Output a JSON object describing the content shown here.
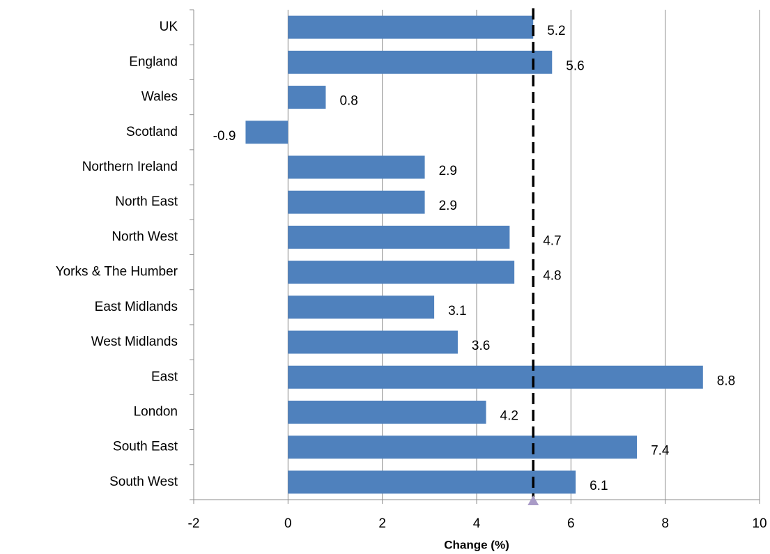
{
  "chart_data": {
    "type": "barh",
    "x_label": "Change (%)",
    "categories": [
      "UK",
      "England",
      "Wales",
      "Scotland",
      "Northern Ireland",
      "North East",
      "North West",
      "Yorks & The Humber",
      "East Midlands",
      "West Midlands",
      "East",
      "London",
      "South East",
      "South West"
    ],
    "values": [
      5.2,
      5.6,
      0.8,
      -0.9,
      2.9,
      2.9,
      4.7,
      4.8,
      3.1,
      3.6,
      8.8,
      4.2,
      7.4,
      6.1
    ],
    "color": "#4f81bd",
    "xlim": [
      -2,
      10
    ],
    "xticks": [
      -2,
      0,
      2,
      4,
      6,
      8,
      10
    ],
    "grid": true,
    "reference_line": 5.2
  }
}
